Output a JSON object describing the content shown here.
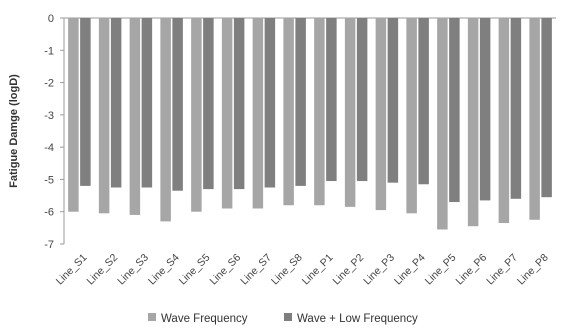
{
  "chart_data": {
    "type": "bar",
    "title": "",
    "xlabel": "",
    "ylabel": "Fatigue Damge (logD)",
    "ylim": [
      -7,
      0
    ],
    "yticks": [
      0,
      -1,
      -2,
      -3,
      -4,
      -5,
      -6,
      -7
    ],
    "grid": false,
    "legend_position": "bottom",
    "categories": [
      "Line_S1",
      "Line_S2",
      "Line_S3",
      "Line_S4",
      "Line_S5",
      "Line_S6",
      "Line_S7",
      "Line_S8",
      "Line_P1",
      "Line_P2",
      "Line_P3",
      "Line_P4",
      "Line_P5",
      "Line_P6",
      "Line_P7",
      "Line_P8"
    ],
    "series": [
      {
        "name": "Wave Frequency",
        "color": "#a6a6a6",
        "values": [
          -6.0,
          -6.05,
          -6.1,
          -6.3,
          -6.0,
          -5.9,
          -5.9,
          -5.8,
          -5.8,
          -5.85,
          -5.95,
          -6.05,
          -6.55,
          -6.45,
          -6.35,
          -6.25
        ]
      },
      {
        "name": "Wave + Low Frequency",
        "color": "#7f7f7f",
        "values": [
          -5.2,
          -5.25,
          -5.25,
          -5.35,
          -5.3,
          -5.3,
          -5.25,
          -5.2,
          -5.05,
          -5.05,
          -5.1,
          -5.15,
          -5.7,
          -5.65,
          -5.6,
          -5.55
        ]
      }
    ]
  }
}
